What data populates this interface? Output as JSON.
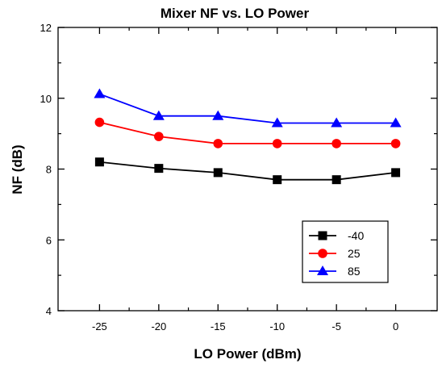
{
  "chart_data": {
    "type": "line",
    "title": "Mixer NF vs. LO Power",
    "xlabel": "LO Power (dBm)",
    "ylabel": "NF (dB)",
    "xlim": [
      -28.5,
      3.5
    ],
    "ylim": [
      4,
      12
    ],
    "x_ticks": [
      -25,
      -20,
      -15,
      -10,
      -5,
      0
    ],
    "y_ticks": [
      4,
      6,
      8,
      10,
      12
    ],
    "x_tick_labels": [
      "-25",
      "-20",
      "-15",
      "-10",
      "-5",
      "0"
    ],
    "y_tick_labels": [
      "4",
      "6",
      "8",
      "10",
      "12"
    ],
    "grid": false,
    "legend_position": "bottom-right",
    "x": [
      -25,
      -20,
      -15,
      -10,
      -5,
      0
    ],
    "series": [
      {
        "name": "-40",
        "color": "#000000",
        "marker": "square",
        "values": [
          8.2,
          8.02,
          7.9,
          7.7,
          7.7,
          7.9
        ]
      },
      {
        "name": "25",
        "color": "#ff0000",
        "marker": "circle",
        "values": [
          9.32,
          8.92,
          8.72,
          8.72,
          8.72,
          8.72
        ]
      },
      {
        "name": "85",
        "color": "#0000ff",
        "marker": "triangle",
        "values": [
          10.12,
          9.5,
          9.5,
          9.3,
          9.3,
          9.3
        ]
      }
    ]
  }
}
